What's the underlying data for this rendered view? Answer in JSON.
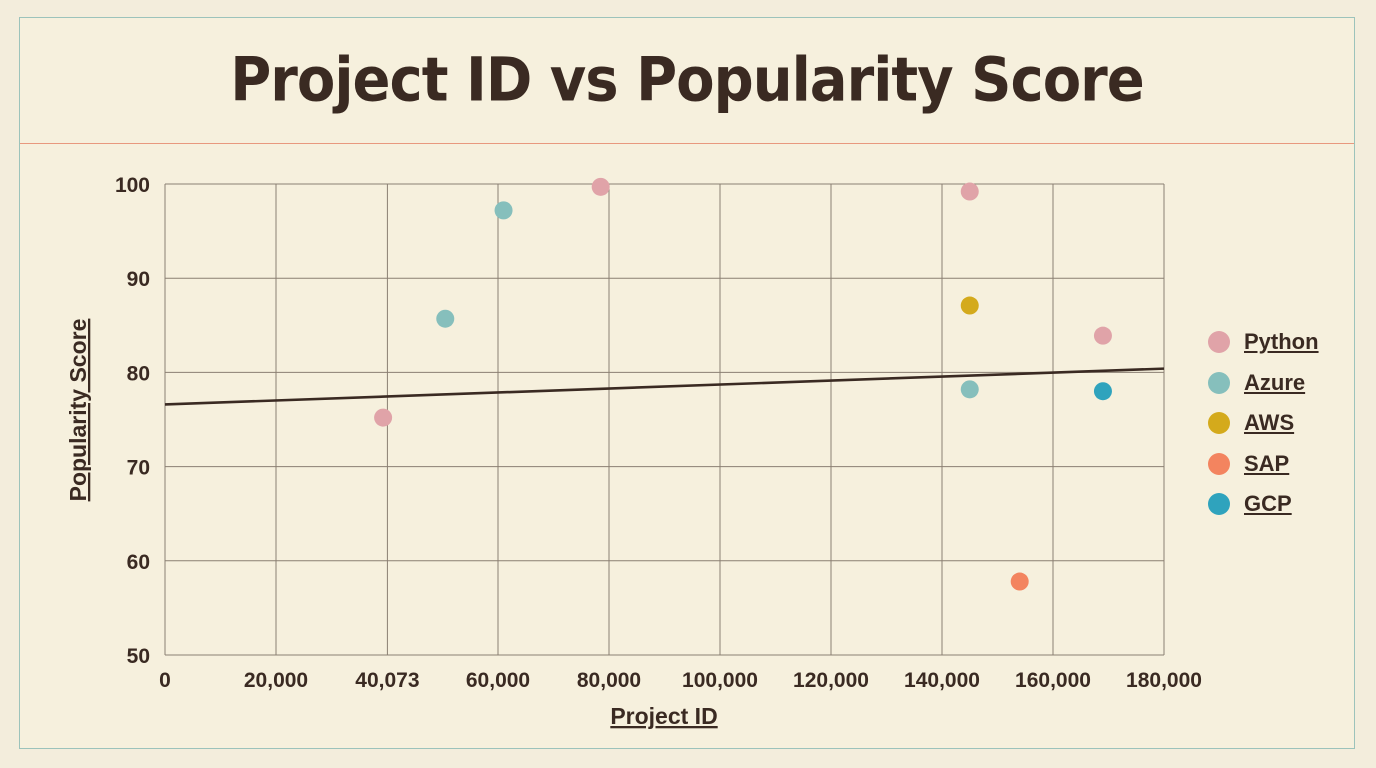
{
  "chart_data": {
    "type": "scatter",
    "title": "Project ID vs Popularity Score",
    "xlabel": "Project ID",
    "ylabel": "Popularity Score",
    "xlim": [
      0,
      180000
    ],
    "ylim": [
      50,
      100
    ],
    "x_ticks": [
      0,
      20000,
      40073,
      60000,
      80000,
      100000,
      120000,
      140000,
      160000,
      180000
    ],
    "x_tick_labels": [
      "0",
      "20,000",
      "40,073",
      "60,000",
      "80,000",
      "100,000",
      "120,000",
      "140,000",
      "160,000",
      "180,000"
    ],
    "y_ticks": [
      50,
      60,
      70,
      80,
      90,
      100
    ],
    "y_tick_labels": [
      "50",
      "60",
      "70",
      "80",
      "90",
      "100"
    ],
    "grid": true,
    "legend_position": "right",
    "series": [
      {
        "name": "Python",
        "color": "#e0a3a8",
        "points": [
          [
            39300,
            75.2
          ],
          [
            78500,
            99.7
          ],
          [
            145000,
            99.2
          ],
          [
            169000,
            83.9
          ]
        ]
      },
      {
        "name": "Azure",
        "color": "#86bfbc",
        "points": [
          [
            50500,
            85.7
          ],
          [
            61000,
            97.2
          ],
          [
            145000,
            78.2
          ]
        ]
      },
      {
        "name": "AWS",
        "color": "#d4aa1c",
        "points": [
          [
            145000,
            87.1
          ]
        ]
      },
      {
        "name": "SAP",
        "color": "#f3845f",
        "points": [
          [
            154000,
            57.8
          ]
        ]
      },
      {
        "name": "GCP",
        "color": "#2fa3bd",
        "points": [
          [
            169000,
            78.0
          ]
        ]
      }
    ],
    "trendline": {
      "x": [
        0,
        180000
      ],
      "y": [
        76.6,
        80.4
      ],
      "color": "#3a2a22"
    }
  }
}
